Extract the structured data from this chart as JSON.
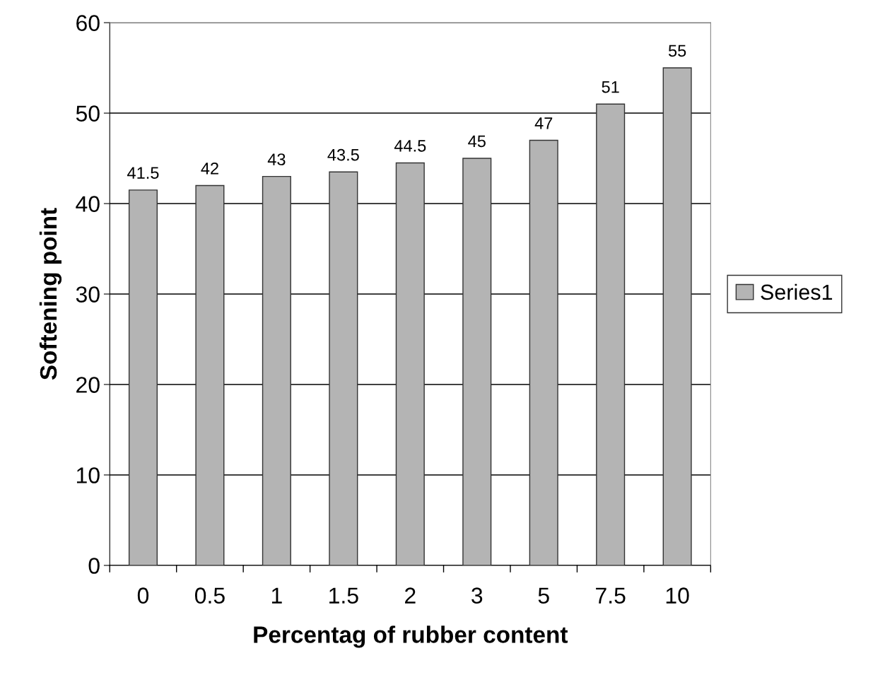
{
  "chart_data": {
    "type": "bar",
    "xlabel": "Percentag of rubber content",
    "ylabel": "Softening point",
    "categories": [
      "0",
      "0.5",
      "1",
      "1.5",
      "2",
      "3",
      "5",
      "7.5",
      "10"
    ],
    "series": [
      {
        "name": "Series1",
        "color": "#b4b4b4",
        "values": [
          41.5,
          42,
          43,
          43.5,
          44.5,
          45,
          47,
          51,
          55
        ]
      }
    ],
    "ylim": [
      0,
      60
    ],
    "yticks": [
      0,
      10,
      20,
      30,
      40,
      50,
      60
    ],
    "grid": "y",
    "legend": "right",
    "data_labels": true
  }
}
